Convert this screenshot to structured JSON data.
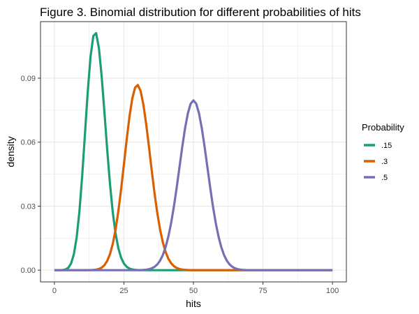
{
  "chart_data": {
    "type": "line",
    "title": "Figure 3. Binomial distribution for different probabilities of hits",
    "xlabel": "hits",
    "ylabel": "density",
    "xlim": [
      -5,
      105
    ],
    "ylim": [
      -0.0055,
      0.1165
    ],
    "x_ticks": [
      0,
      25,
      50,
      75,
      100
    ],
    "x_tick_labels": [
      "0",
      "25",
      "50",
      "75",
      "100"
    ],
    "y_ticks": [
      0,
      0.03,
      0.06,
      0.09
    ],
    "y_tick_labels": [
      "0.00",
      "0.03",
      "0.06",
      "0.09"
    ],
    "grid": true,
    "legend": {
      "title": "Probability",
      "position": "right"
    },
    "binomial_trials": 100,
    "x_range": [
      0,
      100
    ],
    "series": [
      {
        "name": ".15",
        "p": 0.15,
        "color": "#1b9e77"
      },
      {
        "name": ".3",
        "p": 0.3,
        "color": "#d95f02"
      },
      {
        "name": ".5",
        "p": 0.5,
        "color": "#7570b3"
      }
    ]
  }
}
